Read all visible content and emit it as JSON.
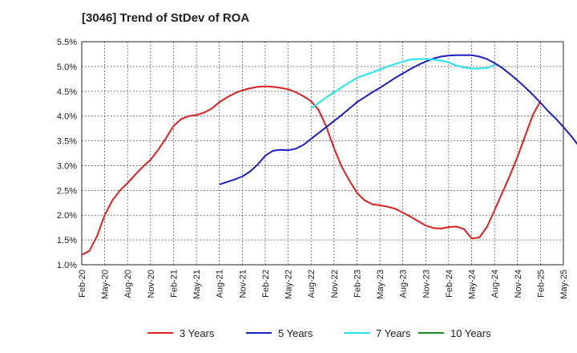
{
  "chart_data": {
    "type": "line",
    "title": "[3046]  Trend of StDev of ROA",
    "xlabel": "",
    "ylabel": "",
    "x_ticks": [
      "Feb-20",
      "May-20",
      "Aug-20",
      "Nov-20",
      "Feb-21",
      "May-21",
      "Aug-21",
      "Nov-21",
      "Feb-22",
      "May-22",
      "Aug-22",
      "Nov-22",
      "Feb-23",
      "May-23",
      "Aug-23",
      "Nov-23",
      "Feb-24",
      "May-24",
      "Aug-24",
      "Nov-24",
      "Feb-25",
      "May-25"
    ],
    "y_ticks": [
      "1.0%",
      "1.5%",
      "2.0%",
      "2.5%",
      "3.0%",
      "3.5%",
      "4.0%",
      "4.5%",
      "5.0%",
      "5.5%"
    ],
    "ylim": [
      1.0,
      5.5
    ],
    "grid": true,
    "legend_position": "bottom",
    "series": [
      {
        "name": "3 Years",
        "color": "#e02020",
        "start_index": 0,
        "values": [
          1.2,
          1.28,
          1.58,
          2.0,
          2.3,
          2.5,
          2.65,
          2.82,
          2.98,
          3.12,
          3.32,
          3.55,
          3.8,
          3.94,
          4.0,
          4.02,
          4.07,
          4.15,
          4.28,
          4.38,
          4.46,
          4.52,
          4.56,
          4.59,
          4.6,
          4.59,
          4.57,
          4.54,
          4.48,
          4.4,
          4.3,
          4.12,
          3.78,
          3.35,
          2.98,
          2.7,
          2.45,
          2.3,
          2.22,
          2.2,
          2.17,
          2.13,
          2.05,
          1.97,
          1.88,
          1.79,
          1.74,
          1.73,
          1.76,
          1.77,
          1.72,
          1.53,
          1.55,
          1.76,
          2.1,
          2.45,
          2.8,
          3.18,
          3.6,
          4.02,
          4.3
        ]
      },
      {
        "name": "5 Years",
        "color": "#1a20c8",
        "start_index": 18,
        "values": [
          2.62,
          2.67,
          2.72,
          2.78,
          2.88,
          3.02,
          3.2,
          3.3,
          3.32,
          3.31,
          3.34,
          3.42,
          3.54,
          3.66,
          3.78,
          3.9,
          4.02,
          4.15,
          4.28,
          4.38,
          4.48,
          4.57,
          4.67,
          4.77,
          4.86,
          4.95,
          5.03,
          5.1,
          5.16,
          5.2,
          5.22,
          5.23,
          5.23,
          5.23,
          5.2,
          5.15,
          5.07,
          4.97,
          4.85,
          4.72,
          4.58,
          4.43,
          4.27,
          4.1,
          3.95,
          3.78,
          3.6,
          3.4,
          3.34,
          3.4,
          3.55
        ]
      },
      {
        "name": "7 Years",
        "color": "#22e6ee",
        "start_index": 30,
        "values": [
          4.16,
          4.27,
          4.38,
          4.48,
          4.58,
          4.68,
          4.77,
          4.83,
          4.88,
          4.94,
          5.0,
          5.05,
          5.1,
          5.14,
          5.15,
          5.15,
          5.14,
          5.12,
          5.08,
          5.02,
          4.98,
          4.96,
          4.96,
          4.97,
          5.03
        ]
      },
      {
        "name": "10 Years",
        "color": "#1e8c1e",
        "start_index": 0,
        "values": []
      }
    ]
  }
}
